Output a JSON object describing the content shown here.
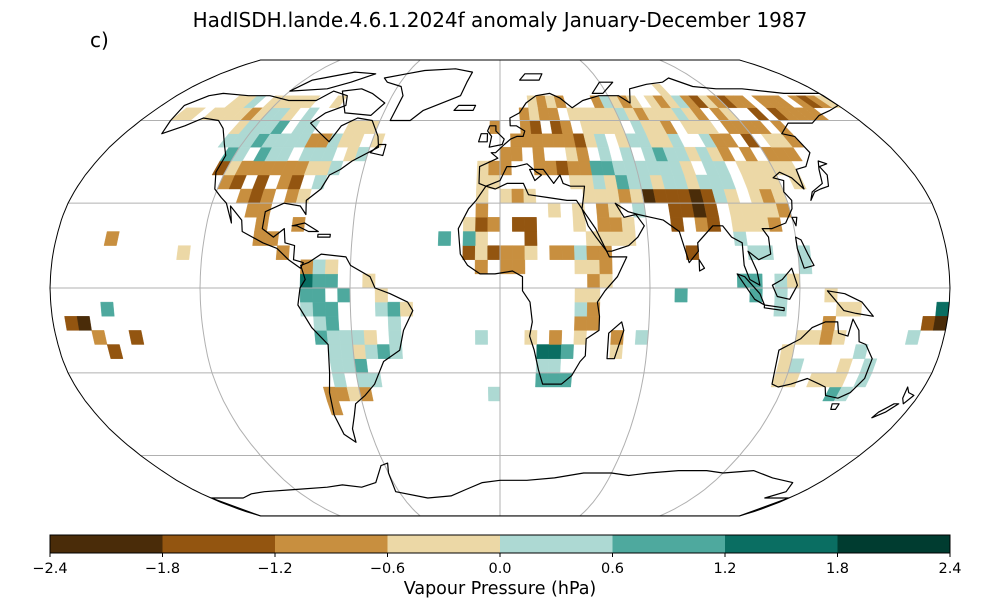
{
  "title": "HadISDH.lande.4.6.1.2024f anomaly January-December 1987",
  "panel_label": "c)",
  "projection": "Robinson",
  "colorbar": {
    "label": "Vapour Pressure (hPa)",
    "ticks": [
      "−2.4",
      "−1.8",
      "−1.2",
      "−0.6",
      "0.0",
      "0.6",
      "1.2",
      "1.8",
      "2.4"
    ],
    "boundaries": [
      -2.4,
      -1.8,
      -1.2,
      -0.6,
      0.0,
      0.6,
      1.2,
      1.8,
      2.4
    ],
    "colors": [
      "#4a2c09",
      "#935510",
      "#c88f3f",
      "#ecd8a6",
      "#add9d3",
      "#4ea99e",
      "#0a6e62",
      "#003c30"
    ]
  },
  "map_styles": {
    "graticule_color": "#b0b0b0",
    "coastline_color": "#000000",
    "background": "#ffffff"
  }
}
